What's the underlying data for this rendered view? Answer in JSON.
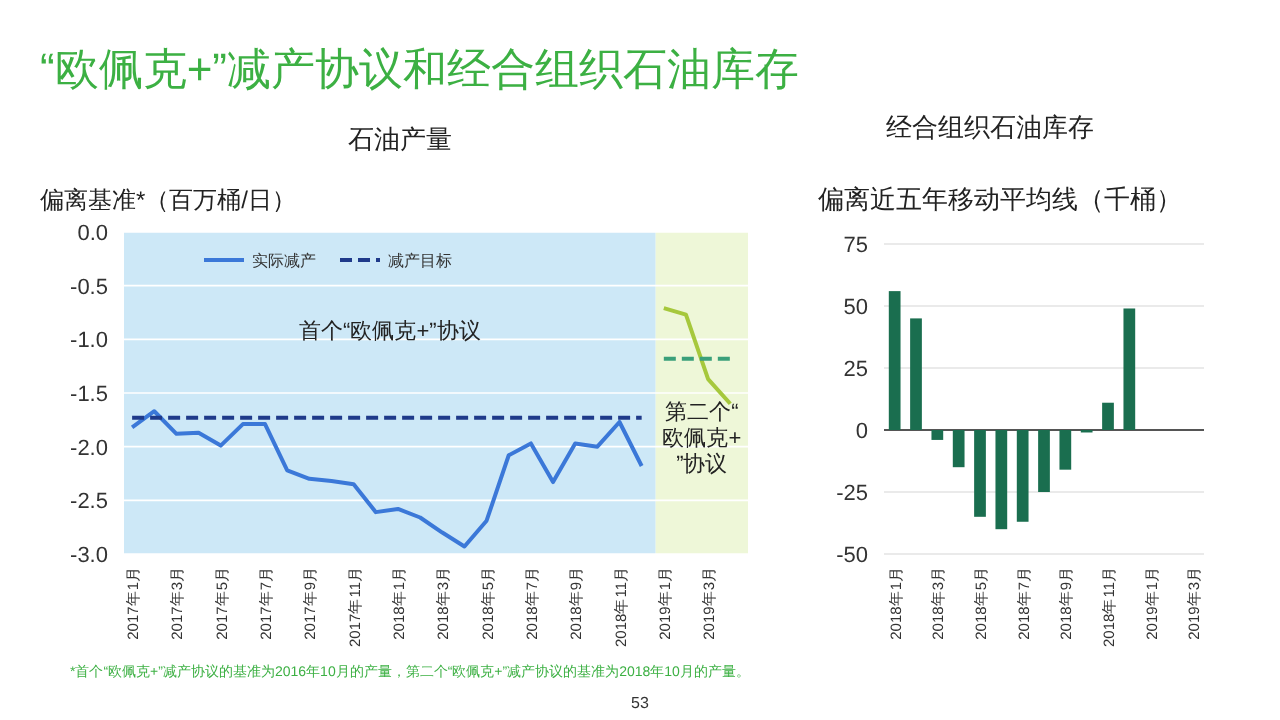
{
  "chart_data": [
    {
      "type": "line",
      "title": "“欧佩克+”减产协议和经合组织石油库存",
      "subtitle": "石油产量",
      "ylabel": "偏离基准*（百万桶/日）",
      "xlim": [
        "2016-12-20",
        "2019-04-25"
      ],
      "ylim": [
        -3.0,
        0.0
      ],
      "xticks": [
        {
          "value": "2017-01",
          "label": "2017年1月"
        },
        {
          "value": "2017-03",
          "label": "2017年3月"
        },
        {
          "value": "2017-05",
          "label": "2017年5月"
        },
        {
          "value": "2017-07",
          "label": "2017年7月"
        },
        {
          "value": "2017-09",
          "label": "2017年9月"
        },
        {
          "value": "2017-11",
          "label": "2017年11月"
        },
        {
          "value": "2018-01",
          "label": "2018年1月"
        },
        {
          "value": "2018-03",
          "label": "2018年3月"
        },
        {
          "value": "2018-05",
          "label": "2018年5月"
        },
        {
          "value": "2018-07",
          "label": "2018年7月"
        },
        {
          "value": "2018-09",
          "label": "2018年9月"
        },
        {
          "value": "2018-11",
          "label": "2018年11月"
        },
        {
          "value": "2019-01",
          "label": "2019年1月"
        },
        {
          "value": "2019-03",
          "label": "2019年3月"
        }
      ],
      "yticks": [
        {
          "value": 0,
          "label": "0.0"
        },
        {
          "value": -0.5,
          "label": "-0.5"
        },
        {
          "value": -1,
          "label": "-1.0"
        },
        {
          "value": -1.5,
          "label": "-1.5"
        },
        {
          "value": -2,
          "label": "-2.0"
        },
        {
          "value": -2.5,
          "label": "-2.5"
        },
        {
          "value": -3,
          "label": "-3.0"
        }
      ],
      "grid": "y",
      "legend": "top left",
      "marker": "none",
      "bands": [
        {
          "axis": "x",
          "from": "2016-12-20",
          "to": "2018-12-20",
          "color": "#cde8f7",
          "label": "首个“欧佩克+”协议"
        },
        {
          "axis": "x",
          "from": "2018-12-20",
          "to": "2019-04-25",
          "color": "#eef7d8",
          "label": "第二个“欧佩克+”协议"
        }
      ],
      "series": [
        {
          "name": "实际减产",
          "color": "#3b78d8",
          "line_style": "solid",
          "x": [
            "2017-01",
            "2017-02",
            "2017-03",
            "2017-04",
            "2017-05",
            "2017-06",
            "2017-07",
            "2017-08",
            "2017-09",
            "2017-10",
            "2017-11",
            "2017-12",
            "2018-01",
            "2018-02",
            "2018-03",
            "2018-04",
            "2018-05",
            "2018-06",
            "2018-07",
            "2018-08",
            "2018-09",
            "2018-10",
            "2018-11",
            "2018-12"
          ],
          "values": [
            -1.82,
            -1.67,
            -1.88,
            -1.87,
            -1.99,
            -1.79,
            -1.79,
            -2.22,
            -2.3,
            -2.32,
            -2.35,
            -2.61,
            -2.58,
            -2.66,
            -2.8,
            -2.93,
            -2.69,
            -2.08,
            -1.97,
            -2.33,
            -1.97,
            -2.0,
            -1.77,
            -2.18
          ]
        },
        {
          "name": "减产目标",
          "color": "#1f3a8a",
          "line_style": "dashed",
          "x": [
            "2017-01",
            "2018-12"
          ],
          "values": [
            -1.73,
            -1.73
          ]
        },
        {
          "color": "#a6c83c",
          "line_style": "solid",
          "x": [
            "2019-01",
            "2019-02",
            "2019-03",
            "2019-04"
          ],
          "values": [
            -0.71,
            -0.77,
            -1.37,
            -1.6
          ]
        },
        {
          "color": "#3aa07a",
          "line_style": "dashed",
          "x": [
            "2019-01",
            "2019-04"
          ],
          "values": [
            -1.18,
            -1.18
          ]
        }
      ],
      "annotations": [
        "*首个“欧佩克+”减产协议的基准为2016年10月的产量，第二个“欧佩克+”减产协议的基准为2018年10月的产量。",
        "53"
      ]
    },
    {
      "type": "bar",
      "title": "经合组织石油库存",
      "ylabel": "偏离近五年移动平均线（千桶）",
      "categories": [
        "2018年1月",
        null,
        "2018年3月",
        null,
        "2018年5月",
        null,
        "2018年7月",
        null,
        "2018年9月",
        null,
        "2018年11月",
        null,
        "2019年1月",
        null,
        "2019年3月"
      ],
      "values": [
        56,
        45,
        -4,
        -15,
        -35,
        -40,
        -37,
        -25,
        -16,
        -1,
        11,
        49,
        null,
        null,
        null
      ],
      "color": "#1a6e4f",
      "ylim": [
        -50,
        75
      ],
      "yticks": [
        75,
        50,
        25,
        0,
        -25,
        -50
      ],
      "grid": "y"
    }
  ]
}
